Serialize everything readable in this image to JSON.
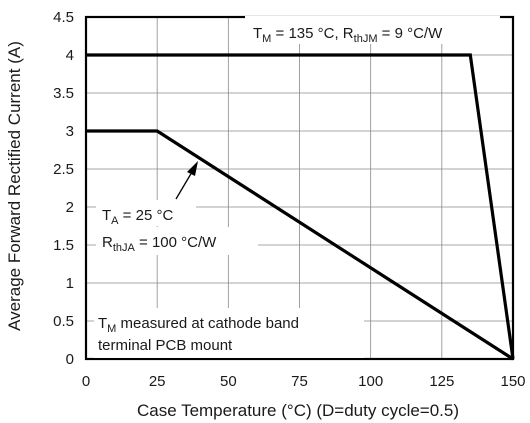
{
  "chart_data": {
    "type": "line",
    "xlabel": "Case Temperature (°C)  (D=duty cycle=0.5)",
    "ylabel": "Average Forward Rectified Current (A)",
    "xlim": [
      0,
      150
    ],
    "ylim": [
      0,
      4.5
    ],
    "x_ticks": [
      0,
      25,
      50,
      75,
      100,
      125,
      150
    ],
    "y_ticks": [
      0,
      0.5,
      1,
      1.5,
      2,
      2.5,
      3,
      3.5,
      4,
      4.5
    ],
    "grid": true,
    "series": [
      {
        "x": [
          0,
          135,
          150
        ],
        "y": [
          4,
          4,
          0
        ]
      },
      {
        "x": [
          0,
          25,
          150
        ],
        "y": [
          3,
          3,
          0
        ]
      }
    ],
    "annotations": {
      "upper": {
        "t_main": "T",
        "t_sub": "M",
        "mid": " = 135 °C, R",
        "r_sub": "thJM",
        "tail": " = 9 °C/W"
      },
      "lower_line1": {
        "main": "T",
        "sub": "A",
        "tail": " = 25 °C"
      },
      "lower_line2": {
        "main": "R",
        "sub": "thJA",
        "tail": " = 100 °C/W"
      },
      "note_line1": {
        "main": "T",
        "sub": "M",
        "tail": " measured at cathode band"
      },
      "note_line2": "terminal PCB mount"
    }
  }
}
